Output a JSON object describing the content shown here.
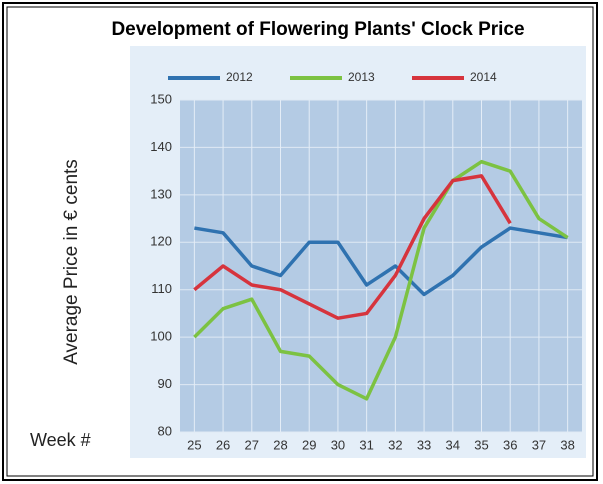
{
  "chart_data": {
    "type": "line",
    "title": "Development of Flowering Plants' Clock Price",
    "y_label": "Average Price in € cents",
    "x_label": "Week #",
    "categories": [
      "25",
      "26",
      "27",
      "28",
      "29",
      "30",
      "31",
      "32",
      "33",
      "34",
      "35",
      "36",
      "37",
      "38"
    ],
    "series": [
      {
        "name": "2012",
        "color": "#2f72b0",
        "values": [
          123,
          122,
          115,
          113,
          120,
          120,
          111,
          115,
          109,
          113,
          119,
          123,
          122,
          121
        ]
      },
      {
        "name": "2013",
        "color": "#7cc242",
        "values": [
          100,
          106,
          108,
          97,
          96,
          90,
          87,
          100,
          123,
          133,
          137,
          135,
          125,
          121
        ]
      },
      {
        "name": "2014",
        "color": "#d6343d",
        "values": [
          110,
          115,
          111,
          110,
          107,
          104,
          105,
          113,
          125,
          133,
          134,
          124,
          null,
          null
        ]
      }
    ],
    "ylim": [
      80,
      150
    ],
    "yticks": [
      80,
      90,
      100,
      110,
      120,
      130,
      140,
      150
    ],
    "grid": true
  }
}
